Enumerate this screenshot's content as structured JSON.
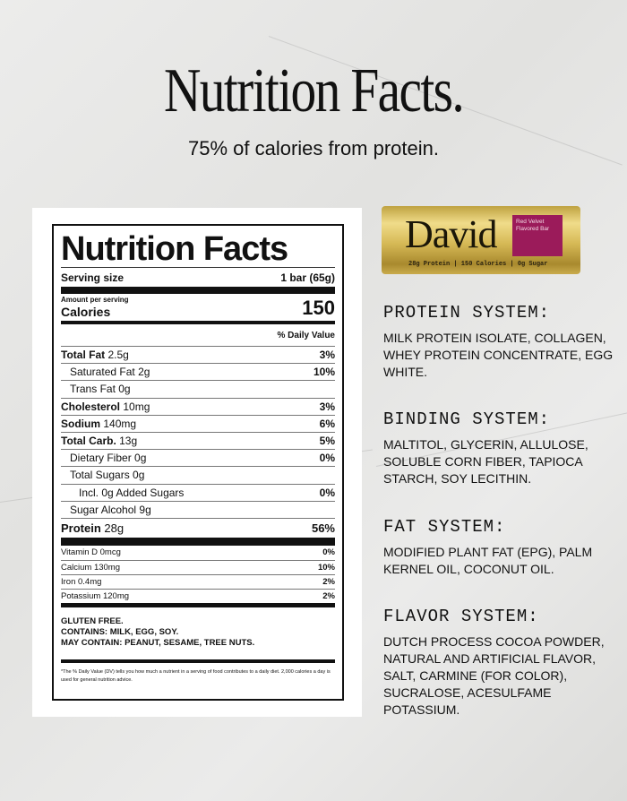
{
  "header": {
    "title": "Nutrition Facts.",
    "subtitle": "75% of calories from protein."
  },
  "label": {
    "title": "Nutrition Facts",
    "serving_size_label": "Serving size",
    "serving_size_value": "1 bar (65g)",
    "amount_per_serving": "Amount per serving",
    "calories_label": "Calories",
    "calories_value": "150",
    "daily_value_header": "% Daily Value",
    "nutrients": [
      {
        "name": "Total Fat",
        "amount": "2.5g",
        "dv": "3%",
        "bold": true,
        "indent": 0
      },
      {
        "name": "Saturated Fat",
        "amount": "2g",
        "dv": "10%",
        "bold": false,
        "indent": 1
      },
      {
        "name": "Trans Fat",
        "amount": "0g",
        "dv": "",
        "bold": false,
        "indent": 1
      },
      {
        "name": "Cholesterol",
        "amount": "10mg",
        "dv": "3%",
        "bold": true,
        "indent": 0
      },
      {
        "name": "Sodium",
        "amount": "140mg",
        "dv": "6%",
        "bold": true,
        "indent": 0
      },
      {
        "name": "Total Carb.",
        "amount": "13g",
        "dv": "5%",
        "bold": true,
        "indent": 0
      },
      {
        "name": "Dietary Fiber",
        "amount": "0g",
        "dv": "0%",
        "bold": false,
        "indent": 1
      },
      {
        "name": "Total Sugars",
        "amount": "0g",
        "dv": "",
        "bold": false,
        "indent": 1
      },
      {
        "name": "Incl. 0g Added Sugars",
        "amount": "",
        "dv": "0%",
        "bold": false,
        "indent": 2
      },
      {
        "name": "Sugar Alcohol",
        "amount": "9g",
        "dv": "",
        "bold": false,
        "indent": 1
      },
      {
        "name": "Protein",
        "amount": "28g",
        "dv": "56%",
        "bold": true,
        "indent": 0
      }
    ],
    "vitamins": [
      {
        "name": "Vitamin D 0mcg",
        "dv": "0%"
      },
      {
        "name": "Calcium 130mg",
        "dv": "10%"
      },
      {
        "name": "Iron 0.4mg",
        "dv": "2%"
      },
      {
        "name": "Potassium 120mg",
        "dv": "2%"
      }
    ],
    "allergens": [
      "GLUTEN FREE.",
      "CONTAINS: MILK, EGG, SOY.",
      "MAY CONTAIN: PEANUT, SESAME, TREE NUTS."
    ],
    "footnote": "*The % Daily Value (DV) tells you how much a nutrient in a serving of food contributes to a daily diet. 2,000 calories a day is used for general nutrition advice."
  },
  "product": {
    "brand": "David",
    "flavor": "Red Velvet Flavored Bar",
    "strip": "28g Protein | 150 Calories | 0g Sugar",
    "colors": {
      "wrapper": "#d6b956",
      "flavor_box": "#9b1b5a"
    }
  },
  "systems": [
    {
      "title": "PROTEIN SYSTEM:",
      "body": "MILK PROTEIN ISOLATE, COLLAGEN, WHEY PROTEIN CONCENTRATE, EGG WHITE."
    },
    {
      "title": "BINDING SYSTEM:",
      "body": "MALTITOL, GLYCERIN, ALLULOSE, SOLUBLE CORN FIBER, TAPIOCA STARCH, SOY LECITHIN."
    },
    {
      "title": "FAT SYSTEM:",
      "body": "MODIFIED PLANT FAT (EPG), PALM KERNEL OIL, COCONUT OIL."
    },
    {
      "title": "FLAVOR SYSTEM:",
      "body": "DUTCH PROCESS COCOA POWDER, NATURAL AND ARTIFICIAL FLAVOR, SALT, CARMINE (FOR COLOR), SUCRALOSE, ACESULFAME POTASSIUM."
    }
  ]
}
